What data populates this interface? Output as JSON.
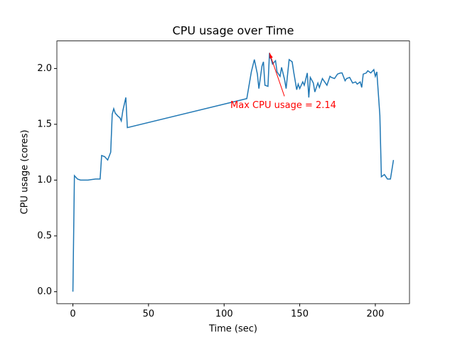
{
  "chart_data": {
    "type": "line",
    "title": "CPU usage over Time",
    "x_label": "Time (sec)",
    "y_label": "CPU usage (cores)",
    "x": [
      0,
      1,
      3,
      5,
      10,
      15,
      18,
      19,
      21,
      23,
      25,
      26,
      27,
      28,
      30,
      31,
      32,
      33,
      35,
      36,
      115,
      118,
      120,
      122,
      123,
      125,
      126,
      127,
      129,
      130,
      132,
      134,
      135,
      137,
      138,
      140,
      141,
      143,
      145,
      146,
      148,
      149,
      150,
      152,
      153,
      155,
      156,
      157,
      159,
      160,
      162,
      163,
      165,
      166,
      168,
      170,
      171,
      173,
      175,
      177,
      178,
      180,
      181,
      183,
      185,
      187,
      188,
      190,
      191,
      192,
      194,
      195,
      197,
      199,
      200,
      201,
      203,
      204,
      206,
      208,
      210,
      212
    ],
    "series": [
      {
        "name": "CPU usage",
        "color": "#1f77b4",
        "values": [
          0,
          1.04,
          1.01,
          1.0,
          1.0,
          1.01,
          1.01,
          1.22,
          1.21,
          1.18,
          1.25,
          1.59,
          1.64,
          1.6,
          1.57,
          1.56,
          1.53,
          1.62,
          1.74,
          1.47,
          1.73,
          1.97,
          2.08,
          1.95,
          1.82,
          2.02,
          2.06,
          1.85,
          1.84,
          2.14,
          2.04,
          2.07,
          1.97,
          1.93,
          2.01,
          1.9,
          1.82,
          2.08,
          2.06,
          1.97,
          1.81,
          1.86,
          1.82,
          1.88,
          1.85,
          1.96,
          1.74,
          1.92,
          1.87,
          1.79,
          1.87,
          1.83,
          1.91,
          1.89,
          1.85,
          1.93,
          1.92,
          1.91,
          1.95,
          1.96,
          1.96,
          1.89,
          1.91,
          1.92,
          1.87,
          1.88,
          1.86,
          1.88,
          1.83,
          1.95,
          1.96,
          1.98,
          1.96,
          1.99,
          1.93,
          1.97,
          1.58,
          1.03,
          1.05,
          1.01,
          1.01,
          1.18
        ]
      }
    ],
    "annotation": {
      "text": "Max CPU usage = 2.14",
      "color": "#ff0000"
    },
    "xlim": [
      -10.6,
      222.6
    ],
    "xticks": [
      0,
      50,
      100,
      150,
      200
    ],
    "ylim": [
      -0.107,
      2.247
    ],
    "yticks": [
      {
        "value": 0,
        "label": "0.0"
      },
      {
        "value": 0.5,
        "label": "0.5"
      },
      {
        "value": 1,
        "label": "1.0"
      },
      {
        "value": 1.5,
        "label": "1.5"
      },
      {
        "value": 2,
        "label": "2.0"
      }
    ]
  }
}
